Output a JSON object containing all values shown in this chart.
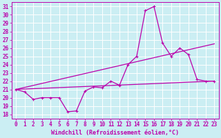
{
  "xlabel": "Windchill (Refroidissement éolien,°C)",
  "background_color": "#cbeef3",
  "grid_color": "#ffffff",
  "line_color": "#bb00aa",
  "x_ticks": [
    0,
    1,
    2,
    3,
    4,
    5,
    6,
    7,
    8,
    9,
    10,
    11,
    12,
    13,
    14,
    15,
    16,
    17,
    18,
    19,
    20,
    21,
    22,
    23
  ],
  "ylim": [
    17.5,
    31.5
  ],
  "yticks": [
    18,
    19,
    20,
    21,
    22,
    23,
    24,
    25,
    26,
    27,
    28,
    29,
    30,
    31
  ],
  "line1_x": [
    0,
    1,
    2,
    3,
    4,
    5,
    6,
    7,
    8,
    9,
    10,
    11,
    12,
    13,
    14,
    15,
    16,
    17,
    18,
    19,
    20,
    21,
    22,
    23
  ],
  "line1_y": [
    21.0,
    20.7,
    19.8,
    20.0,
    20.0,
    20.0,
    18.3,
    18.4,
    20.8,
    21.3,
    21.2,
    22.0,
    21.5,
    24.0,
    25.0,
    30.5,
    31.0,
    26.6,
    25.0,
    26.0,
    25.2,
    22.2,
    22.0,
    22.0
  ],
  "line2_x": [
    0,
    23
  ],
  "line2_y": [
    21.0,
    26.5
  ],
  "line3_x": [
    0,
    23
  ],
  "line3_y": [
    21.0,
    22.0
  ],
  "tick_fontsize": 5.5,
  "xlabel_fontsize": 6.0
}
